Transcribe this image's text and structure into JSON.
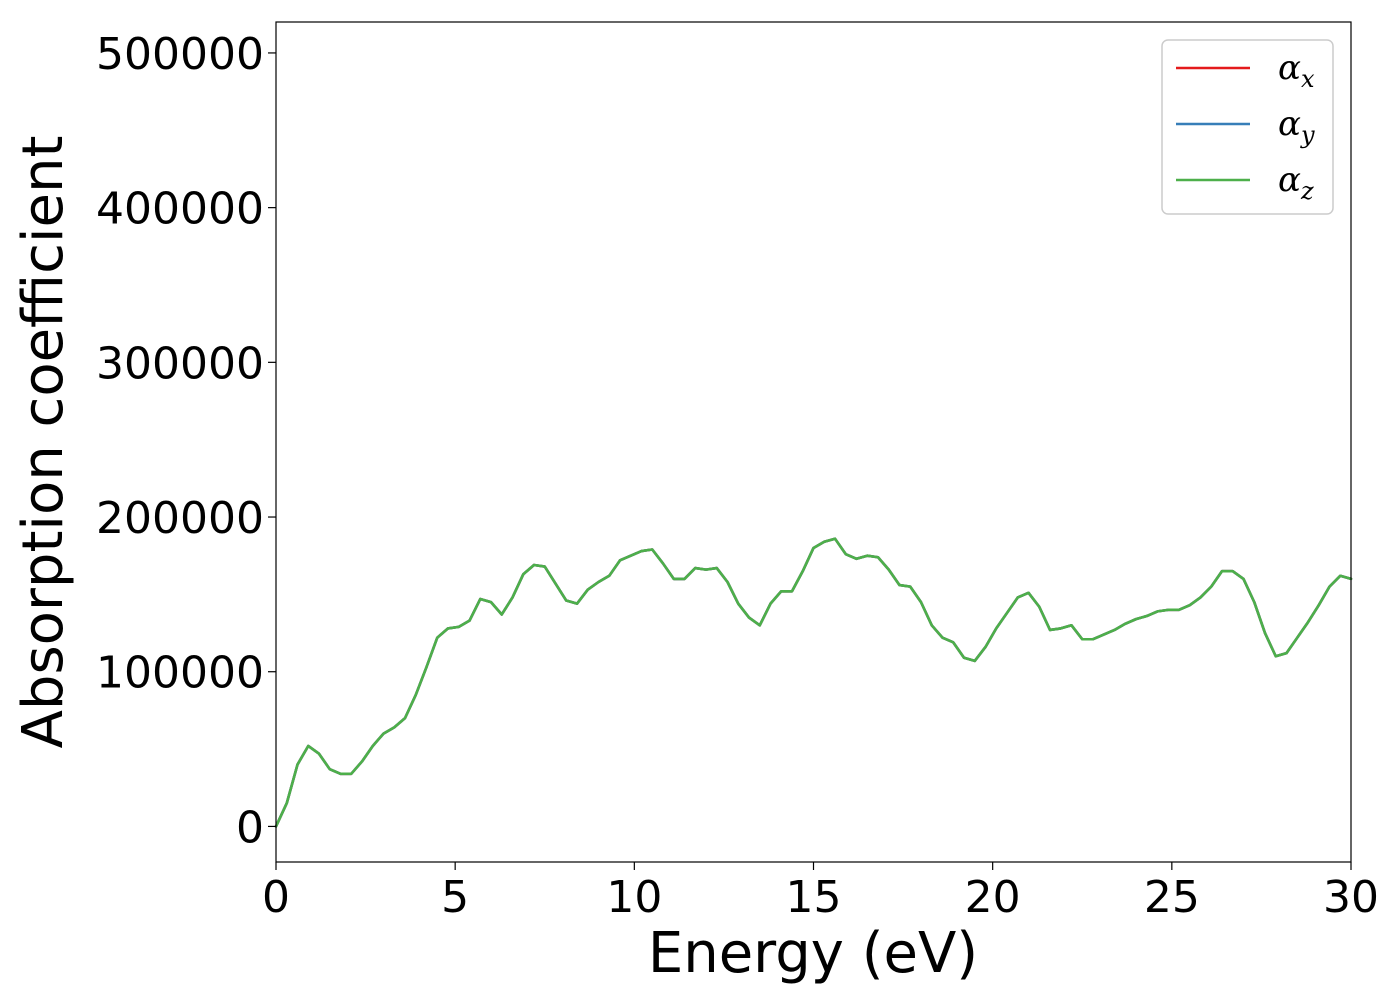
{
  "chart_data": {
    "type": "line",
    "title": "",
    "xlabel": "Energy (eV)",
    "ylabel": "Absorption coefficient",
    "xlim": [
      0,
      30
    ],
    "ylim": [
      -23000,
      520000
    ],
    "xticks": [
      0,
      5,
      10,
      15,
      20,
      25,
      30
    ],
    "xtick_labels": [
      "0",
      "5",
      "10",
      "15",
      "20",
      "25",
      "30"
    ],
    "yticks": [
      0,
      100000,
      200000,
      300000,
      400000,
      500000
    ],
    "ytick_labels": [
      "0",
      "100000",
      "200000",
      "300000",
      "400000",
      "500000"
    ],
    "grid": false,
    "legend_position": "top-right",
    "x": [
      0,
      0.3,
      0.6,
      0.9,
      1.2,
      1.5,
      1.8,
      2.1,
      2.4,
      2.7,
      3.0,
      3.3,
      3.6,
      3.9,
      4.2,
      4.5,
      4.8,
      5.1,
      5.4,
      5.7,
      6.0,
      6.3,
      6.6,
      6.9,
      7.2,
      7.5,
      7.8,
      8.1,
      8.4,
      8.7,
      9.0,
      9.3,
      9.6,
      9.9,
      10.2,
      10.5,
      10.8,
      11.1,
      11.4,
      11.7,
      12.0,
      12.3,
      12.6,
      12.9,
      13.2,
      13.5,
      13.8,
      14.1,
      14.4,
      14.7,
      15.0,
      15.3,
      15.6,
      15.9,
      16.2,
      16.5,
      16.8,
      17.1,
      17.4,
      17.7,
      18.0,
      18.3,
      18.6,
      18.9,
      19.2,
      19.5,
      19.8,
      20.1,
      20.4,
      20.7,
      21.0,
      21.3,
      21.6,
      21.9,
      22.2,
      22.5,
      22.8,
      23.1,
      23.4,
      23.7,
      24.0,
      24.3,
      24.6,
      24.9,
      25.2,
      25.5,
      25.8,
      26.1,
      26.4,
      26.7,
      27.0,
      27.3,
      27.6,
      27.9,
      28.2,
      28.5,
      28.8,
      29.1,
      29.4,
      29.7,
      30.0
    ],
    "series": [
      {
        "name": "αx",
        "symbol": "α",
        "subscript": "x",
        "color": "#e41a1c",
        "values": [
          0,
          15000,
          40000,
          52000,
          47000,
          37000,
          34000,
          34000,
          42000,
          52000,
          60000,
          64000,
          70000,
          85000,
          103000,
          122000,
          128000,
          129000,
          133000,
          147000,
          145000,
          137000,
          148000,
          163000,
          169000,
          168000,
          157000,
          146000,
          144000,
          153000,
          158000,
          162000,
          172000,
          175000,
          178000,
          179000,
          170000,
          160000,
          160000,
          167000,
          166000,
          167000,
          158000,
          144000,
          135000,
          130000,
          144000,
          152000,
          152000,
          165000,
          180000,
          184000,
          186000,
          176000,
          173000,
          175000,
          174000,
          166000,
          156000,
          155000,
          145000,
          130000,
          122000,
          119000,
          109000,
          107000,
          116000,
          128000,
          138000,
          148000,
          151000,
          142000,
          127000,
          128000,
          130000,
          121000,
          121000,
          124000,
          127000,
          131000,
          134000,
          136000,
          139000,
          140000,
          140000,
          143000,
          148000,
          155000,
          165000,
          165000,
          160000,
          145000,
          125000,
          110000,
          112000,
          122000,
          132000,
          143000,
          155000,
          162000,
          160000
        ]
      },
      {
        "name": "αy",
        "symbol": "α",
        "subscript": "y",
        "color": "#377eb8",
        "values": [
          0,
          15000,
          40000,
          52000,
          47000,
          37000,
          34000,
          34000,
          42000,
          52000,
          60000,
          64000,
          70000,
          85000,
          103000,
          122000,
          128000,
          129000,
          133000,
          147000,
          145000,
          137000,
          148000,
          163000,
          169000,
          168000,
          157000,
          146000,
          144000,
          153000,
          158000,
          162000,
          172000,
          175000,
          178000,
          179000,
          170000,
          160000,
          160000,
          167000,
          166000,
          167000,
          158000,
          144000,
          135000,
          130000,
          144000,
          152000,
          152000,
          165000,
          180000,
          184000,
          186000,
          176000,
          173000,
          175000,
          174000,
          166000,
          156000,
          155000,
          145000,
          130000,
          122000,
          119000,
          109000,
          107000,
          116000,
          128000,
          138000,
          148000,
          151000,
          142000,
          127000,
          128000,
          130000,
          121000,
          121000,
          124000,
          127000,
          131000,
          134000,
          136000,
          139000,
          140000,
          140000,
          143000,
          148000,
          155000,
          165000,
          165000,
          160000,
          145000,
          125000,
          110000,
          112000,
          122000,
          132000,
          143000,
          155000,
          162000,
          160000
        ]
      },
      {
        "name": "αz",
        "symbol": "α",
        "subscript": "z",
        "color": "#4daf4a",
        "values": [
          0,
          15000,
          40000,
          52000,
          47000,
          37000,
          34000,
          34000,
          42000,
          52000,
          60000,
          64000,
          70000,
          85000,
          103000,
          122000,
          128000,
          129000,
          133000,
          147000,
          145000,
          137000,
          148000,
          163000,
          169000,
          168000,
          157000,
          146000,
          144000,
          153000,
          158000,
          162000,
          172000,
          175000,
          178000,
          179000,
          170000,
          160000,
          160000,
          167000,
          166000,
          167000,
          158000,
          144000,
          135000,
          130000,
          144000,
          152000,
          152000,
          165000,
          180000,
          184000,
          186000,
          176000,
          173000,
          175000,
          174000,
          166000,
          156000,
          155000,
          145000,
          130000,
          122000,
          119000,
          109000,
          107000,
          116000,
          128000,
          138000,
          148000,
          151000,
          142000,
          127000,
          128000,
          130000,
          121000,
          121000,
          124000,
          127000,
          131000,
          134000,
          136000,
          139000,
          140000,
          140000,
          143000,
          148000,
          155000,
          165000,
          165000,
          160000,
          145000,
          125000,
          110000,
          112000,
          122000,
          132000,
          143000,
          155000,
          162000,
          160000
        ]
      }
    ]
  }
}
